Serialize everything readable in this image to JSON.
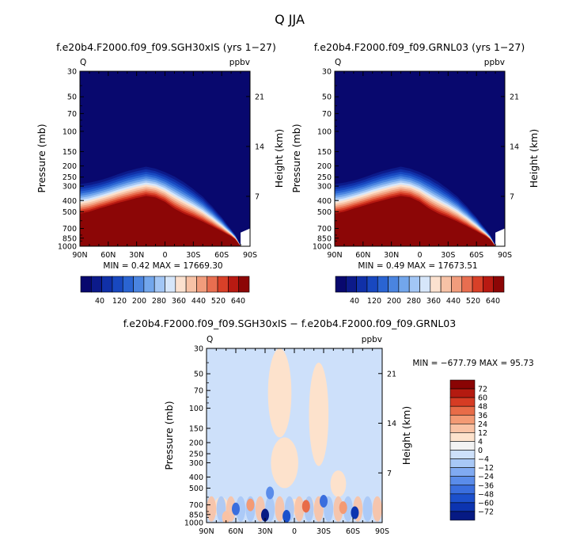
{
  "page_title": "Q JJA",
  "colors": {
    "top_scale": [
      "#08086e",
      "#0c1a8a",
      "#1030a8",
      "#1848c0",
      "#2a64d2",
      "#4a84e0",
      "#72a6ec",
      "#a2c6f5",
      "#d6e6fa",
      "#fbe1cf",
      "#f7c2a6",
      "#f19c7c",
      "#e86e50",
      "#d84028",
      "#b81a12",
      "#8c0606"
    ],
    "diff_scale": [
      "#061a84",
      "#0c34b0",
      "#1c50cc",
      "#3a6ede",
      "#5a8cea",
      "#80aaf2",
      "#a8c8f6",
      "#cde0fa",
      "#f3f3f3",
      "#fde2cc",
      "#f9c2a4",
      "#f39a74",
      "#e86c48",
      "#d63c24",
      "#b41a10",
      "#8a0404"
    ]
  },
  "chart_data": [
    {
      "id": "left",
      "type": "heatmap",
      "title": "f.e20b4.F2000.f09_f09.SGH30xIS (yrs 1−27)",
      "variable": "Q",
      "units": "ppbv",
      "ylabel": "Pressure (mb)",
      "y2label": "Height (km)",
      "pressure_ticks": [
        30,
        50,
        70,
        100,
        150,
        200,
        250,
        300,
        400,
        500,
        700,
        850,
        1000
      ],
      "pressure_labels": [
        "30",
        "50",
        "70",
        "100",
        "150",
        "200",
        "250",
        "300",
        "400",
        "500",
        "700",
        "850",
        "1000"
      ],
      "height_ticks": [
        7,
        14,
        21
      ],
      "x_ticks": [
        "90N",
        "60N",
        "30N",
        "0",
        "30S",
        "60S",
        "90S"
      ],
      "min": "0.42",
      "max": "17669.30",
      "minmax_text": "MIN =    0.42   MAX = 17669.30",
      "colorbar_labels": [
        "40",
        "120",
        "200",
        "280",
        "360",
        "440",
        "520",
        "640"
      ],
      "tropopause_profile": {
        "lat": [
          90,
          80,
          70,
          60,
          50,
          40,
          30,
          20,
          10,
          0,
          -10,
          -20,
          -30,
          -40,
          -50,
          -60,
          -70,
          -75,
          -80
        ],
        "p_top": [
          270,
          262,
          252,
          238,
          222,
          208,
          198,
          190,
          198,
          212,
          230,
          258,
          298,
          350,
          430,
          540,
          700,
          800,
          980
        ]
      },
      "moist_profile": {
        "lat": [
          90,
          80,
          70,
          60,
          50,
          40,
          30,
          20,
          10,
          0,
          -10,
          -20,
          -30,
          -40,
          -50,
          -60,
          -70,
          -75,
          -80
        ],
        "p_top": [
          520,
          500,
          470,
          445,
          420,
          400,
          380,
          365,
          375,
          410,
          470,
          520,
          560,
          610,
          670,
          740,
          820,
          880,
          1000
        ]
      }
    },
    {
      "id": "right",
      "type": "heatmap",
      "title": "f.e20b4.F2000.f09_f09.GRNL03 (yrs 1−27)",
      "variable": "Q",
      "units": "ppbv",
      "ylabel": "Pressure (mb)",
      "y2label": "Height (km)",
      "pressure_ticks": [
        30,
        50,
        70,
        100,
        150,
        200,
        250,
        300,
        400,
        500,
        700,
        850,
        1000
      ],
      "pressure_labels": [
        "30",
        "50",
        "70",
        "100",
        "150",
        "200",
        "250",
        "300",
        "400",
        "500",
        "700",
        "850",
        "1000"
      ],
      "height_ticks": [
        7,
        14,
        21
      ],
      "x_ticks": [
        "90N",
        "60N",
        "30N",
        "0",
        "30S",
        "60S",
        "90S"
      ],
      "min": "0.49",
      "max": "17673.51",
      "minmax_text": "MIN =    0.49   MAX = 17673.51",
      "colorbar_labels": [
        "40",
        "120",
        "200",
        "280",
        "360",
        "440",
        "520",
        "640"
      ],
      "tropopause_profile": {
        "lat": [
          90,
          80,
          70,
          60,
          50,
          40,
          30,
          20,
          10,
          0,
          -10,
          -20,
          -30,
          -40,
          -50,
          -60,
          -70,
          -75,
          -80
        ],
        "p_top": [
          270,
          262,
          252,
          238,
          222,
          208,
          198,
          190,
          198,
          212,
          230,
          258,
          298,
          350,
          430,
          540,
          700,
          800,
          980
        ]
      },
      "moist_profile": {
        "lat": [
          90,
          80,
          70,
          60,
          50,
          40,
          30,
          20,
          10,
          0,
          -10,
          -20,
          -30,
          -40,
          -50,
          -60,
          -70,
          -75,
          -80
        ],
        "p_top": [
          520,
          500,
          470,
          445,
          420,
          400,
          380,
          365,
          375,
          410,
          470,
          520,
          560,
          610,
          670,
          740,
          820,
          880,
          1000
        ]
      }
    },
    {
      "id": "diff",
      "type": "heatmap",
      "title": "f.e20b4.F2000.f09_f09.SGH30xIS − f.e20b4.F2000.f09_f09.GRNL03",
      "variable": "Q",
      "units": "ppbv",
      "ylabel": "Pressure (mb)",
      "y2label": "Height (km)",
      "pressure_ticks": [
        30,
        50,
        70,
        100,
        150,
        200,
        250,
        300,
        400,
        500,
        700,
        850,
        1000
      ],
      "pressure_labels": [
        "30",
        "50",
        "70",
        "100",
        "150",
        "200",
        "250",
        "300",
        "400",
        "500",
        "700",
        "850",
        "1000"
      ],
      "height_ticks": [
        7,
        14,
        21
      ],
      "x_ticks": [
        "90N",
        "60N",
        "30N",
        "0",
        "30S",
        "60S",
        "90S"
      ],
      "min": "−677.79",
      "max": "95.73",
      "minmax_text": "MIN = −677.79   MAX =   95.73",
      "colorbar_labels": [
        "72",
        "60",
        "48",
        "36",
        "24",
        "12",
        "4",
        "0",
        "−4",
        "−12",
        "−24",
        "−36",
        "−48",
        "−60",
        "−72"
      ],
      "positive_regions": [
        {
          "lat": 15,
          "p": 100,
          "lat_width": 12,
          "p_span": [
            30,
            180
          ]
        },
        {
          "lat": -25,
          "p": 130,
          "lat_width": 10,
          "p_span": [
            40,
            320
          ]
        },
        {
          "lat": 10,
          "p": 300,
          "lat_width": 14,
          "p_span": [
            180,
            500
          ]
        },
        {
          "lat": -45,
          "p": 450,
          "lat_width": 8,
          "p_span": [
            350,
            600
          ]
        },
        {
          "lat": 75,
          "p": 720,
          "lat_width": 8,
          "p_span": [
            600,
            900
          ]
        },
        {
          "lat": 0,
          "p": 720,
          "lat_width": 6,
          "p_span": [
            620,
            850
          ]
        },
        {
          "lat": -15,
          "p": 700,
          "lat_width": 6,
          "p_span": [
            600,
            900
          ]
        }
      ],
      "strong_spots": [
        {
          "lat": -12,
          "p": 720,
          "value": 48
        },
        {
          "lat": 45,
          "p": 700,
          "value": 36
        },
        {
          "lat": -50,
          "p": 740,
          "value": 36
        },
        {
          "lat": 30,
          "p": 860,
          "value": -72
        },
        {
          "lat": -62,
          "p": 820,
          "value": -60
        },
        {
          "lat": 8,
          "p": 880,
          "value": -48
        },
        {
          "lat": 60,
          "p": 760,
          "value": -36
        },
        {
          "lat": -30,
          "p": 650,
          "value": -36
        },
        {
          "lat": 25,
          "p": 550,
          "value": -24
        },
        {
          "lat": 70,
          "p": 900,
          "value": 24
        }
      ]
    }
  ]
}
